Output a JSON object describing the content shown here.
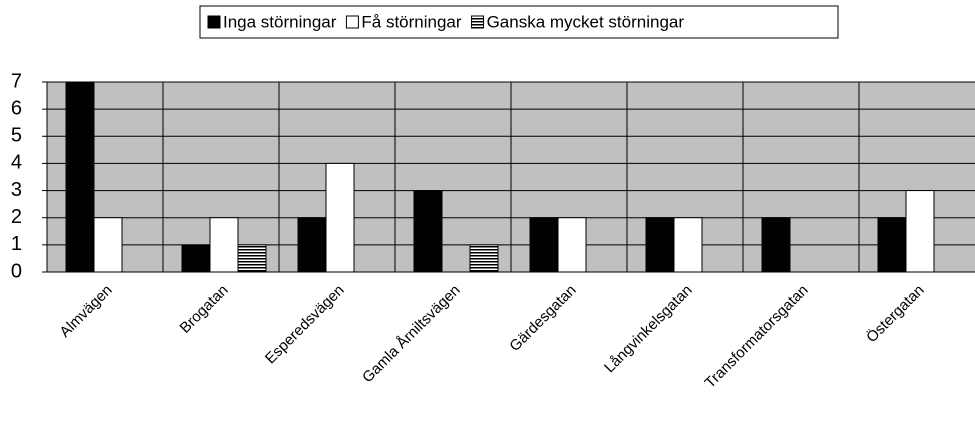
{
  "chart_data": {
    "type": "bar",
    "categories": [
      "Almvägen",
      "Brogatan",
      "Esperedsvägen",
      "Gamla Årniltsvägen",
      "Gärdesgatan",
      "Långvinkelsgatan",
      "Transformatorsgatan",
      "Östergatan"
    ],
    "series": [
      {
        "name": "Inga störningar",
        "color": "#000000",
        "values": [
          7,
          1,
          2,
          3,
          2,
          2,
          2,
          2
        ]
      },
      {
        "name": "Få störningar",
        "color": "#ffffff",
        "values": [
          2,
          2,
          4,
          0,
          2,
          2,
          0,
          3
        ]
      },
      {
        "name": "Ganska mycket störningar",
        "color": "#808080",
        "pattern": "horizontal-lines",
        "values": [
          0,
          1,
          0,
          1,
          0,
          0,
          0,
          0
        ]
      }
    ],
    "ylim": [
      0,
      7
    ],
    "yticks": [
      0,
      1,
      2,
      3,
      4,
      5,
      6,
      7
    ],
    "grid": true,
    "legend": "top"
  }
}
